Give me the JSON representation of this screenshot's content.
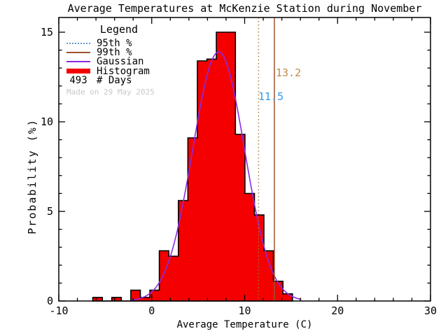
{
  "chart_data": {
    "type": "bar",
    "subtype": "histogram-with-gaussian-fit",
    "title": "Average Temperatures at McKenzie Station during November",
    "xlabel": "Average Temperature (C)",
    "ylabel": "Probability (%)",
    "xlim": [
      -10,
      30
    ],
    "ylim": [
      0,
      15.82
    ],
    "xticks": [
      -10,
      0,
      10,
      20,
      30
    ],
    "yticks": [
      0,
      5,
      10,
      15
    ],
    "x_minor_step": 2,
    "y_minor_step": 1,
    "grid": false,
    "histogram": {
      "bin_start": -6.34,
      "bin_width": 1.023,
      "heights_percent": [
        0.2,
        0,
        0.2,
        0,
        0.6,
        0.2,
        0.6,
        2.8,
        2.5,
        5.6,
        9.1,
        13.4,
        13.5,
        15.0,
        15.0,
        9.3,
        6.0,
        4.8,
        2.8,
        1.1,
        0.4
      ]
    },
    "gaussian": {
      "mean": 7.2,
      "sigma": 2.8,
      "peak_percent": 13.9,
      "draw_range": [
        -2.2,
        16.1
      ]
    },
    "percentile_lines": {
      "p95": {
        "label": "11.5",
        "value": 11.5,
        "style": "dotted"
      },
      "p99": {
        "label": "13.2",
        "value": 13.2,
        "style": "solid"
      }
    },
    "legend": {
      "title": "Legend",
      "items": [
        {
          "label": "95th %"
        },
        {
          "label": "99th %"
        },
        {
          "label": "Gaussian"
        },
        {
          "label": "Histogram"
        }
      ],
      "days_value": "493",
      "days_label": "# Days"
    },
    "watermark": "Made on 29 May 2025",
    "colors": {
      "histogram_fill": "#F40000",
      "histogram_outline": "#000000",
      "gaussian": "#8B2BE2",
      "p95_line": "#A9752F",
      "p99_line": "#A0522D",
      "p95_label": "#3399E6",
      "p99_label": "#C08A4A",
      "legend_p95_swatch": "#6699CC",
      "axis": "#000000",
      "watermark": "#C8C8C8",
      "background": "#FFFFFF"
    }
  }
}
